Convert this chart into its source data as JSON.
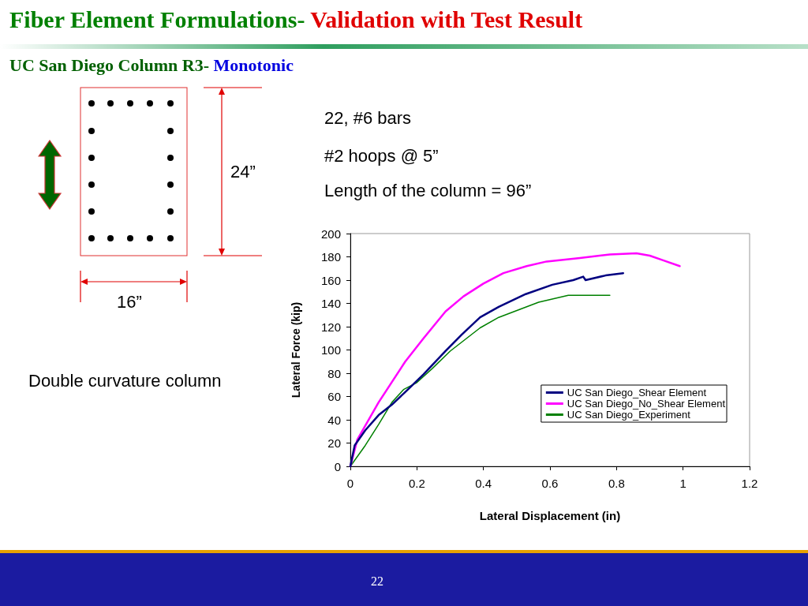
{
  "chart_data": {
    "type": "line",
    "title": "Fiber Element Formulations- Validation with Test Result",
    "subtitle": "UC San Diego Column R3- Monotonic",
    "xlabel": "Lateral Displacement (in)",
    "ylabel": "Lateral Force (kip)",
    "annotations": [
      "22, #6 bars",
      "#2 hoops @ 5”",
      "Length of the column = 96”",
      "Double curvature column",
      "24”",
      "16”",
      "22"
    ],
    "series": [
      {
        "name": "UC San Diego_Shear Element",
        "color": "#000080",
        "x": [
          0,
          0.013,
          0.045,
          0.085,
          0.125,
          0.173,
          0.22,
          0.286,
          0.334,
          0.39,
          0.446,
          0.527,
          0.607,
          0.67,
          0.7,
          0.707,
          0.767,
          0.82
        ],
        "values": [
          0,
          18,
          31,
          44,
          53,
          66,
          79,
          99,
          113,
          128,
          137,
          148,
          156,
          160,
          163,
          160,
          164,
          166
        ]
      },
      {
        "name": "UC San Diego_No_Shear Element",
        "color": "#ff00ff",
        "x": [
          0,
          0.021,
          0.085,
          0.165,
          0.22,
          0.286,
          0.34,
          0.4,
          0.46,
          0.53,
          0.59,
          0.69,
          0.78,
          0.86,
          0.9,
          0.94,
          0.99
        ],
        "values": [
          0,
          23,
          55,
          90,
          110,
          133,
          146,
          157,
          166,
          172,
          176,
          179,
          182,
          183,
          181,
          177,
          172
        ]
      },
      {
        "name": "UC San Diego_Experiment",
        "color": "#008000",
        "x": [
          0,
          0.045,
          0.085,
          0.125,
          0.16,
          0.2,
          0.246,
          0.3,
          0.39,
          0.446,
          0.566,
          0.655,
          0.78
        ],
        "values": [
          0,
          18,
          36,
          55,
          66,
          72,
          84,
          99,
          119,
          128,
          141,
          147,
          147
        ]
      }
    ],
    "xlim": [
      0,
      1.2
    ],
    "xticks": [
      0,
      0.2,
      0.4,
      0.6,
      0.8,
      1,
      1.2
    ],
    "ylim": [
      0,
      200
    ],
    "yticks": [
      0,
      20,
      40,
      60,
      80,
      100,
      120,
      140,
      160,
      180,
      200
    ],
    "grid": false,
    "legend": "bottom right",
    "marker": "none",
    "line_style": "solid"
  }
}
